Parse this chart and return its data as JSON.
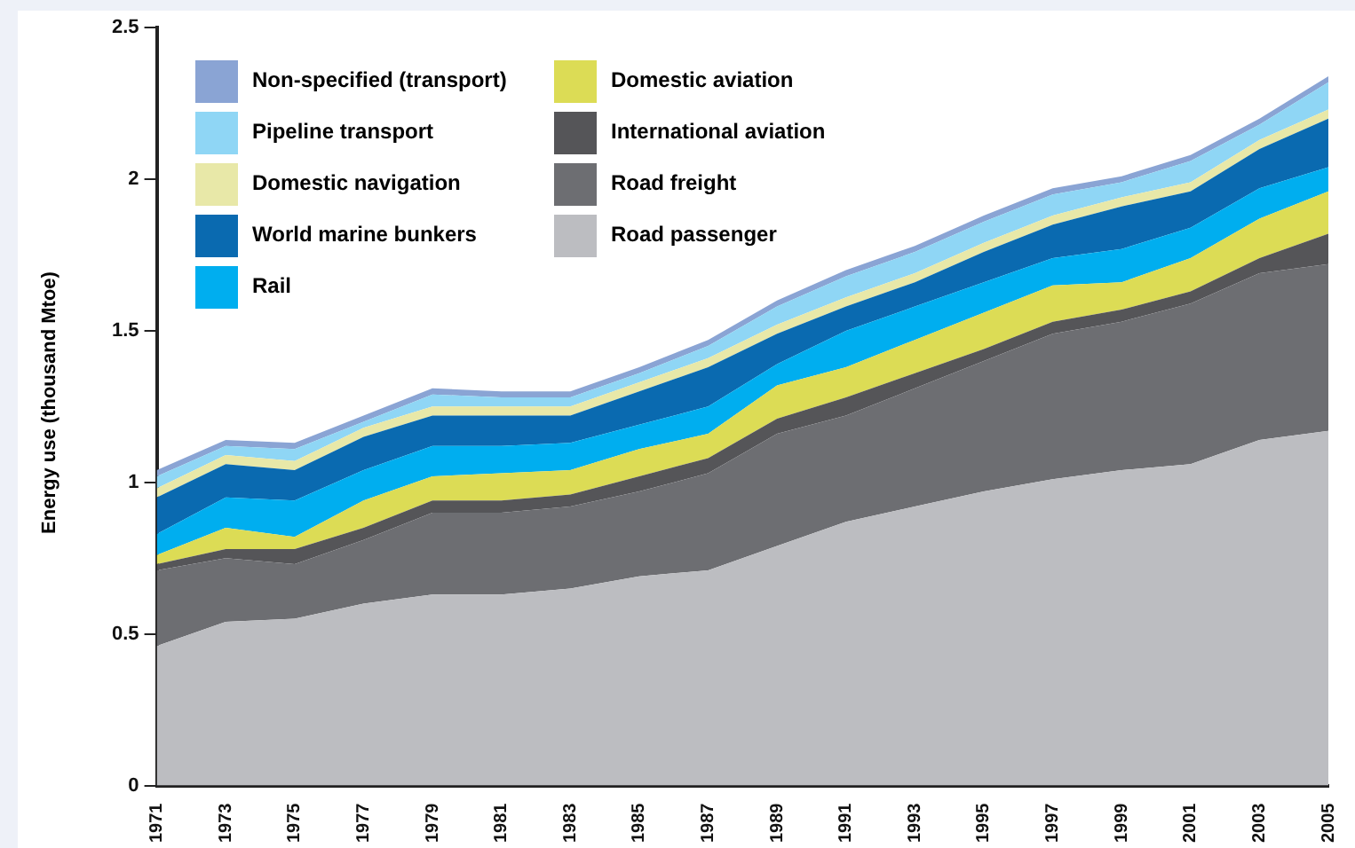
{
  "chart_data": {
    "type": "area",
    "stacked": true,
    "ylabel": "Energy use (thousand Mtoe)",
    "legend": "top left",
    "grid": false,
    "categories": [
      "1971",
      "1973",
      "1975",
      "1977",
      "1979",
      "1981",
      "1983",
      "1985",
      "1987",
      "1989",
      "1991",
      "1993",
      "1995",
      "1997",
      "1999",
      "2001",
      "2003",
      "2005"
    ],
    "ylim": [
      0,
      2.5
    ],
    "yticks": [
      0,
      0.5,
      1,
      1.5,
      2,
      2.5
    ],
    "series": [
      {
        "name": "Road passenger",
        "color": "#bcbdc1",
        "values": [
          0.46,
          0.54,
          0.55,
          0.6,
          0.63,
          0.63,
          0.65,
          0.69,
          0.71,
          0.79,
          0.87,
          0.92,
          0.97,
          1.01,
          1.04,
          1.06,
          1.14,
          1.17
        ]
      },
      {
        "name": "Road freight",
        "color": "#6d6e72",
        "values": [
          0.25,
          0.21,
          0.18,
          0.21,
          0.27,
          0.27,
          0.27,
          0.28,
          0.32,
          0.37,
          0.35,
          0.39,
          0.43,
          0.48,
          0.49,
          0.53,
          0.55,
          0.55
        ]
      },
      {
        "name": "International aviation",
        "color": "#555558",
        "values": [
          0.02,
          0.03,
          0.05,
          0.04,
          0.04,
          0.04,
          0.04,
          0.05,
          0.05,
          0.05,
          0.06,
          0.05,
          0.04,
          0.04,
          0.04,
          0.04,
          0.05,
          0.1
        ]
      },
      {
        "name": "Domestic aviation",
        "color": "#dcdc55",
        "values": [
          0.03,
          0.07,
          0.04,
          0.09,
          0.08,
          0.09,
          0.08,
          0.09,
          0.08,
          0.11,
          0.1,
          0.11,
          0.12,
          0.12,
          0.09,
          0.11,
          0.13,
          0.14
        ]
      },
      {
        "name": "Rail",
        "color": "#00aeef",
        "values": [
          0.07,
          0.1,
          0.12,
          0.1,
          0.1,
          0.09,
          0.09,
          0.08,
          0.09,
          0.07,
          0.12,
          0.11,
          0.1,
          0.09,
          0.11,
          0.1,
          0.1,
          0.08
        ]
      },
      {
        "name": "World marine bunkers",
        "color": "#0a6ab0",
        "values": [
          0.12,
          0.11,
          0.1,
          0.11,
          0.1,
          0.1,
          0.09,
          0.11,
          0.13,
          0.1,
          0.08,
          0.08,
          0.1,
          0.11,
          0.14,
          0.12,
          0.13,
          0.16
        ]
      },
      {
        "name": "Domestic navigation",
        "color": "#e8e8a8",
        "values": [
          0.03,
          0.03,
          0.03,
          0.03,
          0.03,
          0.03,
          0.03,
          0.03,
          0.03,
          0.03,
          0.03,
          0.03,
          0.03,
          0.03,
          0.03,
          0.03,
          0.03,
          0.03
        ]
      },
      {
        "name": "Pipeline transport",
        "color": "#8fd6f5",
        "values": [
          0.04,
          0.03,
          0.04,
          0.02,
          0.04,
          0.03,
          0.03,
          0.03,
          0.04,
          0.06,
          0.07,
          0.07,
          0.07,
          0.07,
          0.05,
          0.07,
          0.05,
          0.09
        ]
      },
      {
        "name": "Non-specified (transport)",
        "color": "#8aa4d4",
        "values": [
          0.02,
          0.02,
          0.02,
          0.02,
          0.02,
          0.02,
          0.02,
          0.02,
          0.02,
          0.02,
          0.02,
          0.02,
          0.02,
          0.02,
          0.02,
          0.02,
          0.02,
          0.02
        ]
      }
    ]
  }
}
